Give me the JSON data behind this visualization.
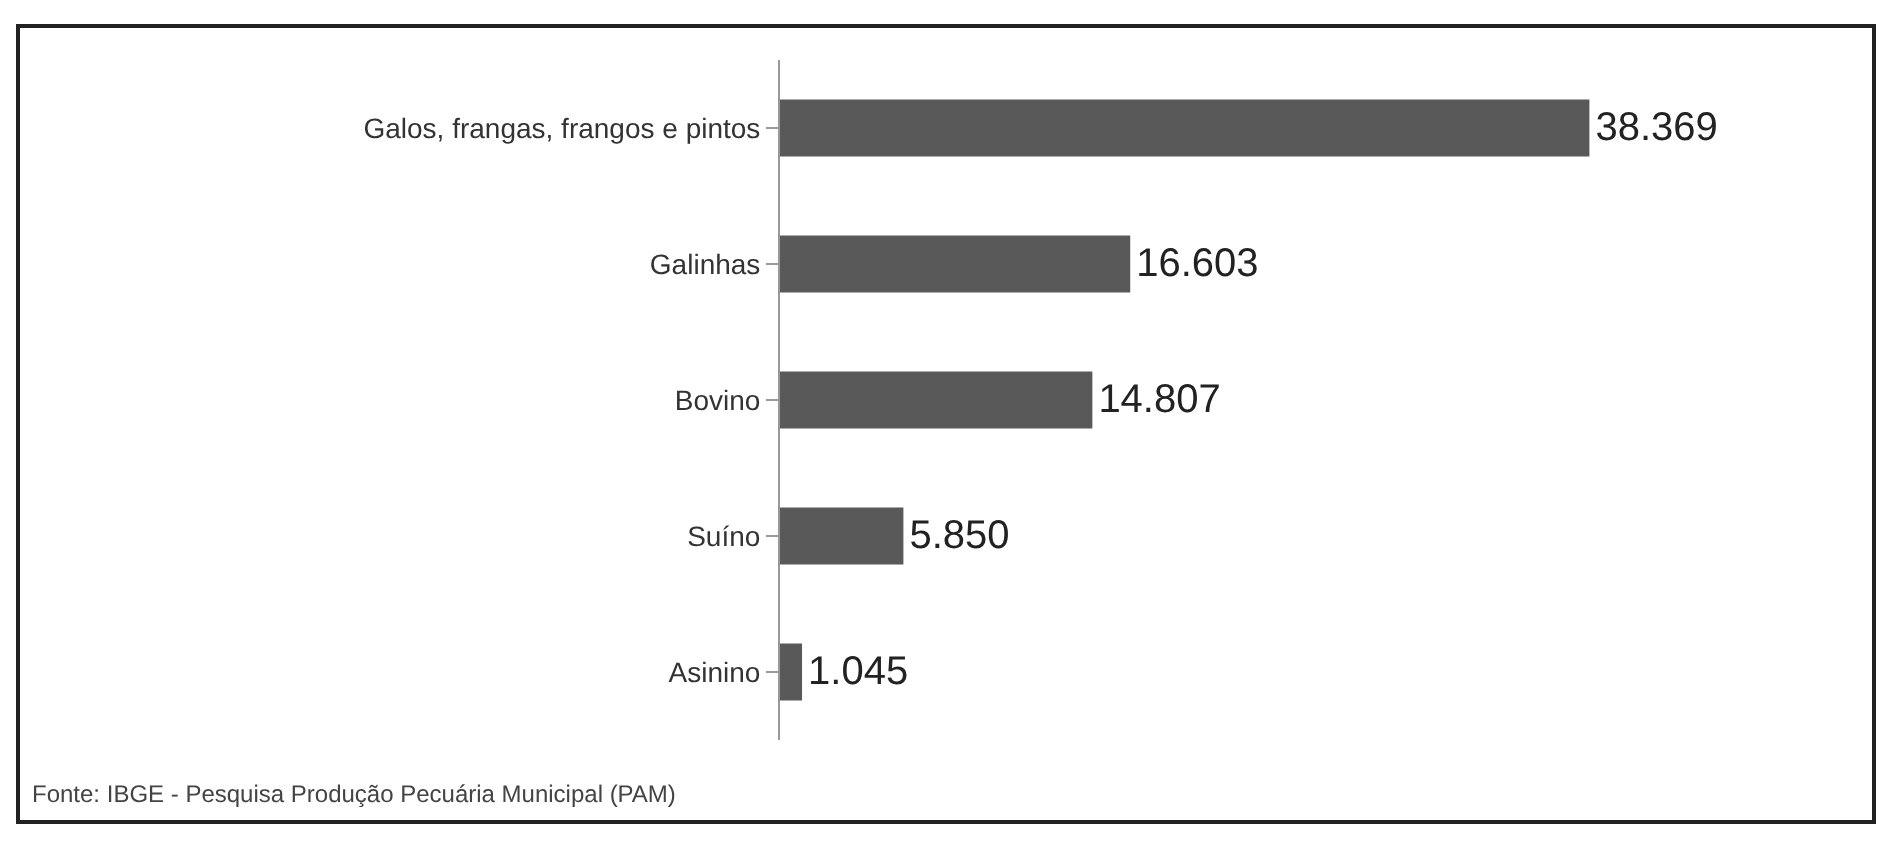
{
  "chart_data": {
    "type": "bar",
    "orientation": "horizontal",
    "categories": [
      "Galos, frangas, frangos e pintos",
      "Galinhas",
      "Bovino",
      "Suíno",
      "Asinino"
    ],
    "values": [
      38369,
      16603,
      14807,
      5850,
      1045
    ],
    "value_labels": [
      "38.369",
      "16.603",
      "14.807",
      "5.850",
      "1.045"
    ],
    "color": "#595959",
    "annotations": [
      "Fonte: IBGE - Pesquisa Produção Pecuária Municipal (PAM)"
    ]
  }
}
